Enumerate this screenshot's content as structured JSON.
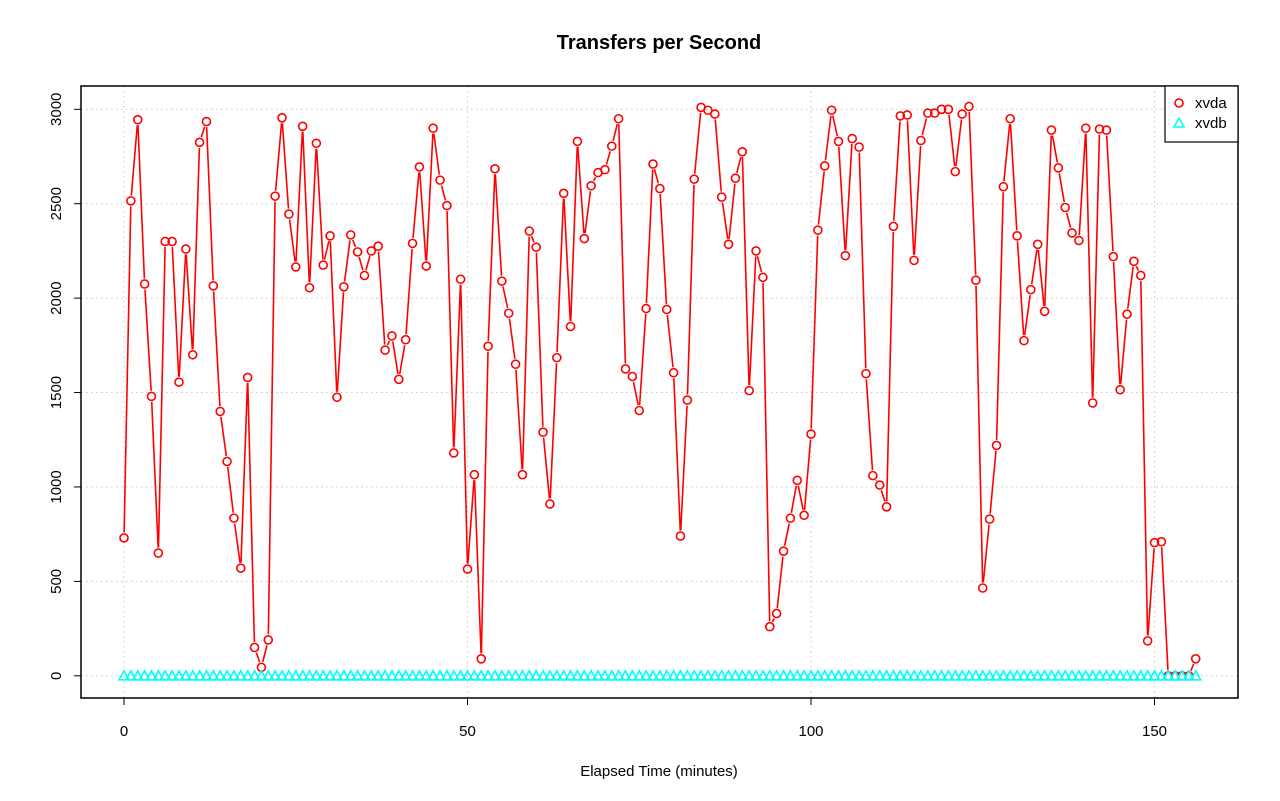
{
  "chart_data": {
    "type": "line",
    "title": "Transfers per Second",
    "xlabel": "Elapsed Time (minutes)",
    "ylabel": "",
    "xlim": [
      -6,
      162
    ],
    "ylim": [
      -120,
      3120
    ],
    "x_ticks": [
      0,
      50,
      100,
      150
    ],
    "y_ticks": [
      0,
      500,
      1000,
      1500,
      2000,
      2500,
      3000
    ],
    "x_tick_labels": [
      "0",
      "50",
      "100",
      "150"
    ],
    "y_tick_labels": [
      "0",
      "500",
      "1000",
      "1500",
      "2000",
      "2500",
      "3000"
    ],
    "grid": true,
    "legend_position": "top-right",
    "series": [
      {
        "name": "xvda",
        "color": "#ff0000",
        "marker": "circle",
        "x": [
          0,
          1,
          2,
          3,
          4,
          5,
          6,
          7,
          8,
          9,
          10,
          11,
          12,
          13,
          14,
          15,
          16,
          17,
          18,
          19,
          20,
          21,
          22,
          23,
          24,
          25,
          26,
          27,
          28,
          29,
          30,
          31,
          32,
          33,
          34,
          35,
          36,
          37,
          38,
          39,
          40,
          41,
          42,
          43,
          44,
          45,
          46,
          47,
          48,
          49,
          50,
          51,
          52,
          53,
          54,
          55,
          56,
          57,
          58,
          59,
          60,
          61,
          62,
          63,
          64,
          65,
          66,
          67,
          68,
          69,
          70,
          71,
          72,
          73,
          74,
          75,
          76,
          77,
          78,
          79,
          80,
          81,
          82,
          83,
          84,
          85,
          86,
          87,
          88,
          89,
          90,
          91,
          92,
          93,
          94,
          95,
          96,
          97,
          98,
          99,
          100,
          101,
          102,
          103,
          104,
          105,
          106,
          107,
          108,
          109,
          110,
          111,
          112,
          113,
          114,
          115,
          116,
          117,
          118,
          119,
          120,
          121,
          122,
          123,
          124,
          125,
          126,
          127,
          128,
          129,
          130,
          131,
          132,
          133,
          134,
          135,
          136,
          137,
          138,
          139,
          140,
          141,
          142,
          143,
          144,
          145,
          146,
          147,
          148,
          149,
          150,
          151,
          152,
          153,
          154,
          155,
          156
        ],
        "values": [
          730,
          2515,
          2945,
          2075,
          1480,
          650,
          2300,
          2300,
          1555,
          2260,
          1700,
          2825,
          2935,
          2065,
          1400,
          1135,
          835,
          570,
          1580,
          150,
          45,
          190,
          2540,
          2955,
          2445,
          2165,
          2910,
          2055,
          2820,
          2175,
          2330,
          1475,
          2060,
          2335,
          2245,
          2120,
          2250,
          2275,
          1725,
          1800,
          1570,
          1780,
          2290,
          2695,
          2170,
          2900,
          2625,
          2490,
          1180,
          2100,
          565,
          1065,
          90,
          1745,
          2685,
          2090,
          1920,
          1650,
          1065,
          2355,
          2270,
          1290,
          910,
          1685,
          2555,
          1850,
          2830,
          2315,
          2595,
          2665,
          2680,
          2805,
          2950,
          1625,
          1585,
          1405,
          1945,
          2710,
          2580,
          1940,
          1605,
          740,
          1460,
          2630,
          3010,
          2995,
          2975,
          2535,
          2285,
          2635,
          2775,
          1510,
          2250,
          2110,
          260,
          330,
          660,
          835,
          1035,
          850,
          1280,
          2360,
          2700,
          2995,
          2830,
          2225,
          2845,
          2800,
          1600,
          1060,
          1010,
          895,
          2380,
          2965,
          2970,
          2200,
          2835,
          2980,
          2980,
          3000,
          3000,
          2670,
          2975,
          3015,
          2095,
          465,
          830,
          1220,
          2590,
          2950,
          2330,
          1775,
          2045,
          2285,
          1930,
          2890,
          2690,
          2480,
          2345,
          2305,
          2900,
          1445,
          2895,
          2890,
          2220,
          1515,
          1915,
          2195,
          2120,
          185,
          705,
          710,
          0,
          0,
          0,
          0,
          90
        ]
      },
      {
        "name": "xvdb",
        "color": "#00ffff",
        "marker": "triangle",
        "x": [
          0,
          1,
          2,
          3,
          4,
          5,
          6,
          7,
          8,
          9,
          10,
          11,
          12,
          13,
          14,
          15,
          16,
          17,
          18,
          19,
          20,
          21,
          22,
          23,
          24,
          25,
          26,
          27,
          28,
          29,
          30,
          31,
          32,
          33,
          34,
          35,
          36,
          37,
          38,
          39,
          40,
          41,
          42,
          43,
          44,
          45,
          46,
          47,
          48,
          49,
          50,
          51,
          52,
          53,
          54,
          55,
          56,
          57,
          58,
          59,
          60,
          61,
          62,
          63,
          64,
          65,
          66,
          67,
          68,
          69,
          70,
          71,
          72,
          73,
          74,
          75,
          76,
          77,
          78,
          79,
          80,
          81,
          82,
          83,
          84,
          85,
          86,
          87,
          88,
          89,
          90,
          91,
          92,
          93,
          94,
          95,
          96,
          97,
          98,
          99,
          100,
          101,
          102,
          103,
          104,
          105,
          106,
          107,
          108,
          109,
          110,
          111,
          112,
          113,
          114,
          115,
          116,
          117,
          118,
          119,
          120,
          121,
          122,
          123,
          124,
          125,
          126,
          127,
          128,
          129,
          130,
          131,
          132,
          133,
          134,
          135,
          136,
          137,
          138,
          139,
          140,
          141,
          142,
          143,
          144,
          145,
          146,
          147,
          148,
          149,
          150,
          151,
          152,
          153,
          154,
          155,
          156
        ],
        "values": [
          0,
          0,
          0,
          0,
          0,
          0,
          0,
          0,
          0,
          0,
          0,
          0,
          0,
          0,
          0,
          0,
          0,
          0,
          0,
          0,
          0,
          0,
          0,
          0,
          0,
          0,
          0,
          0,
          0,
          0,
          0,
          0,
          0,
          0,
          0,
          0,
          0,
          0,
          0,
          0,
          0,
          0,
          0,
          0,
          0,
          0,
          0,
          0,
          0,
          0,
          0,
          0,
          0,
          0,
          0,
          0,
          0,
          0,
          0,
          0,
          0,
          0,
          0,
          0,
          0,
          0,
          0,
          0,
          0,
          0,
          0,
          0,
          0,
          0,
          0,
          0,
          0,
          0,
          0,
          0,
          0,
          0,
          0,
          0,
          0,
          0,
          0,
          0,
          0,
          0,
          0,
          0,
          0,
          0,
          0,
          0,
          0,
          0,
          0,
          0,
          0,
          0,
          0,
          0,
          0,
          0,
          0,
          0,
          0,
          0,
          0,
          0,
          0,
          0,
          0,
          0,
          0,
          0,
          0,
          0,
          0,
          0,
          0,
          0,
          0,
          0,
          0,
          0,
          0,
          0,
          0,
          0,
          0,
          0,
          0,
          0,
          0,
          0,
          0,
          0,
          0,
          0,
          0,
          0,
          0,
          0,
          0,
          0,
          0,
          0,
          0,
          0,
          0,
          0,
          0,
          0,
          0
        ]
      }
    ]
  }
}
